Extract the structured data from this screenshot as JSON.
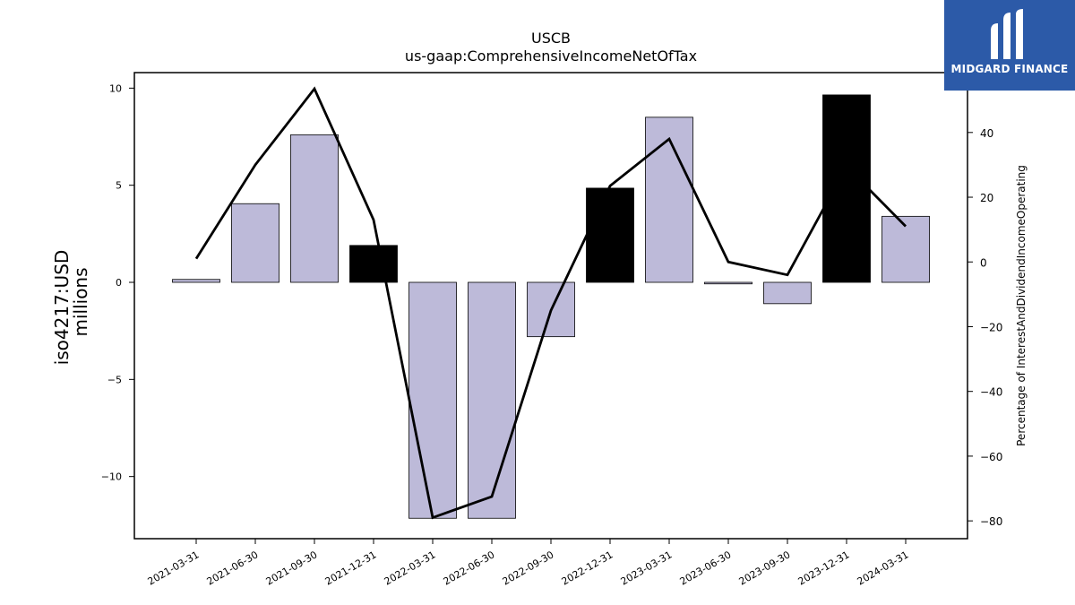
{
  "brand": {
    "name": "MIDGARD FINANCE",
    "color": "#2c5aa8"
  },
  "chart_data": {
    "type": "bar",
    "title": "USCB",
    "subtitle": "us-gaap:ComprehensiveIncomeNetOfTax",
    "ylabel": "iso4217:USD",
    "ylabel_sub": "millions",
    "y2label": "Percentage of InterestAndDividendIncomeOperating",
    "categories": [
      "2021-03-31",
      "2021-06-30",
      "2021-09-30",
      "2021-12-31",
      "2022-03-31",
      "2022-06-30",
      "2022-09-30",
      "2022-12-31",
      "2023-03-31",
      "2023-06-30",
      "2023-09-30",
      "2023-12-31",
      "2024-03-31"
    ],
    "series": [
      {
        "axis": "left",
        "kind": "bar",
        "values": [
          0.15,
          4.05,
          7.6,
          1.9,
          -12.15,
          -12.15,
          -2.8,
          4.85,
          8.5,
          -0.08,
          -1.1,
          9.65,
          3.4
        ],
        "colors": [
          "#bdbad9",
          "#bdbad9",
          "#bdbad9",
          "#000000",
          "#bdbad9",
          "#bdbad9",
          "#bdbad9",
          "#000000",
          "#bdbad9",
          "#bdbad9",
          "#bdbad9",
          "#000000",
          "#bdbad9"
        ]
      },
      {
        "axis": "right",
        "kind": "line",
        "color": "#000000",
        "values": [
          1,
          30,
          53.5,
          13,
          -79,
          -72.5,
          -15,
          23.5,
          38,
          0,
          -4,
          29.5,
          11
        ]
      }
    ],
    "ylim": [
      -13.2,
      10.8
    ],
    "y2lim": [
      -85.5,
      58.5
    ],
    "yticks": [
      -10,
      -5,
      0,
      5,
      10
    ],
    "y2ticks": [
      -80,
      -60,
      -40,
      -20,
      0,
      20,
      40
    ],
    "grid": false,
    "legend": "none"
  }
}
